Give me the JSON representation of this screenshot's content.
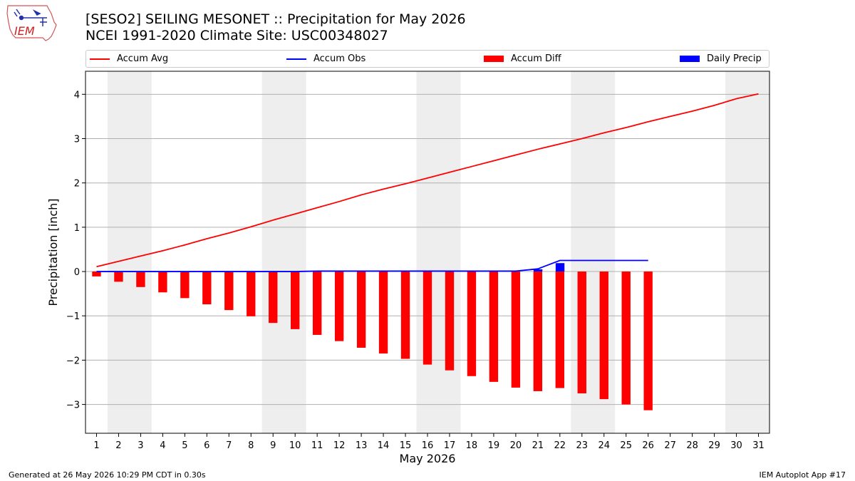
{
  "logo": {
    "text": "IEM"
  },
  "title": {
    "line1": "[SESO2] SEILING MESONET :: Precipitation for May 2026",
    "line2": "NCEI 1991-2020 Climate Site: USC00348027"
  },
  "legend": {
    "placement": "top",
    "items": [
      {
        "label": "Accum Avg",
        "kind": "line",
        "color": "#ff0000"
      },
      {
        "label": "Accum Obs",
        "kind": "line",
        "color": "#0000ff"
      },
      {
        "label": "Accum Diff",
        "kind": "patch",
        "color": "#ff0000"
      },
      {
        "label": "Daily Precip",
        "kind": "patch",
        "color": "#0000ff"
      }
    ]
  },
  "chart_data": {
    "type": "bar",
    "xlabel": "May 2026",
    "ylabel": "Precipitation [inch]",
    "xlim": [
      0.5,
      31.5
    ],
    "ylim": [
      -3.65,
      4.52
    ],
    "yticks": [
      -3,
      -2,
      -1,
      0,
      1,
      2,
      3,
      4
    ],
    "ytick_labels": [
      "−3",
      "−2",
      "−1",
      "0",
      "1",
      "2",
      "3",
      "4"
    ],
    "xticks": [
      1,
      2,
      3,
      4,
      5,
      6,
      7,
      8,
      9,
      10,
      11,
      12,
      13,
      14,
      15,
      16,
      17,
      18,
      19,
      20,
      21,
      22,
      23,
      24,
      25,
      26,
      27,
      28,
      29,
      30,
      31
    ],
    "grid": "y",
    "weekend_shading": [
      [
        1.5,
        3.5
      ],
      [
        8.5,
        10.5
      ],
      [
        15.5,
        17.5
      ],
      [
        22.5,
        24.5
      ],
      [
        29.5,
        31.5
      ]
    ],
    "series": [
      {
        "name": "Accum Avg",
        "type": "line",
        "color": "#ff0000",
        "x": [
          1,
          2,
          3,
          4,
          5,
          6,
          7,
          8,
          9,
          10,
          11,
          12,
          13,
          14,
          15,
          16,
          17,
          18,
          19,
          20,
          21,
          22,
          23,
          24,
          25,
          26,
          27,
          28,
          29,
          30,
          31
        ],
        "values": [
          0.11,
          0.23,
          0.35,
          0.47,
          0.6,
          0.74,
          0.87,
          1.01,
          1.16,
          1.3,
          1.44,
          1.58,
          1.73,
          1.86,
          1.98,
          2.11,
          2.24,
          2.37,
          2.5,
          2.63,
          2.76,
          2.88,
          3.0,
          3.13,
          3.25,
          3.38,
          3.5,
          3.62,
          3.75,
          3.9,
          4.01
        ]
      },
      {
        "name": "Accum Obs",
        "type": "line",
        "color": "#0000ff",
        "x": [
          1,
          2,
          3,
          4,
          5,
          6,
          7,
          8,
          9,
          10,
          11,
          12,
          13,
          14,
          15,
          16,
          17,
          18,
          19,
          20,
          21,
          22,
          23,
          24,
          25,
          26
        ],
        "values": [
          0,
          0,
          0,
          0,
          0,
          0,
          0,
          0,
          0,
          0,
          0.01,
          0.01,
          0.01,
          0.01,
          0.01,
          0.01,
          0.01,
          0.01,
          0.01,
          0.01,
          0.06,
          0.25,
          0.25,
          0.25,
          0.25,
          0.25
        ]
      },
      {
        "name": "Accum Diff",
        "type": "bar",
        "color": "#ff0000",
        "x": [
          1,
          2,
          3,
          4,
          5,
          6,
          7,
          8,
          9,
          10,
          11,
          12,
          13,
          14,
          15,
          16,
          17,
          18,
          19,
          20,
          21,
          22,
          23,
          24,
          25,
          26
        ],
        "values": [
          -0.11,
          -0.23,
          -0.35,
          -0.47,
          -0.6,
          -0.74,
          -0.87,
          -1.01,
          -1.16,
          -1.3,
          -1.43,
          -1.57,
          -1.72,
          -1.85,
          -1.97,
          -2.1,
          -2.23,
          -2.36,
          -2.49,
          -2.62,
          -2.7,
          -2.63,
          -2.75,
          -2.88,
          -3.0,
          -3.13
        ]
      },
      {
        "name": "Daily Precip",
        "type": "bar",
        "color": "#0000ff",
        "x": [
          21,
          22
        ],
        "values": [
          0.05,
          0.19
        ]
      }
    ]
  },
  "footer": {
    "left": "Generated at 26 May 2026 10:29 PM CDT in 0.30s",
    "right": "IEM Autoplot App #17"
  }
}
